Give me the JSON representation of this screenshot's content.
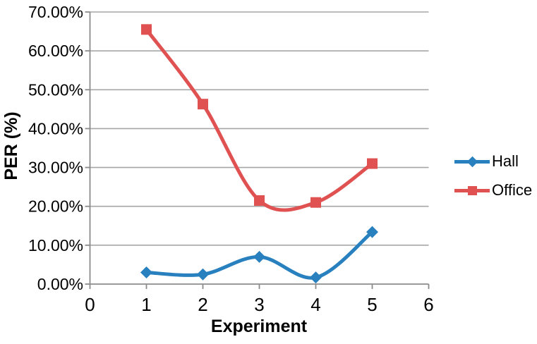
{
  "chart_data": {
    "type": "line",
    "title": "",
    "xlabel": "Experiment",
    "ylabel": "PER (%)",
    "x": [
      1,
      2,
      3,
      4,
      5
    ],
    "series": [
      {
        "name": "Hall",
        "color": "#2880BE",
        "marker": "diamond",
        "values": [
          3.0,
          2.5,
          7.0,
          1.7,
          13.4
        ]
      },
      {
        "name": "Office",
        "color": "#E05151",
        "marker": "square",
        "values": [
          65.5,
          46.3,
          21.5,
          21.0,
          31.0
        ]
      }
    ],
    "xlim": [
      0,
      6
    ],
    "ylim": [
      0,
      70
    ],
    "xtick_values": [
      0,
      1,
      2,
      3,
      4,
      5,
      6
    ],
    "xtick_labels": [
      "0",
      "1",
      "2",
      "3",
      "4",
      "5",
      "6"
    ],
    "ytick_values": [
      0,
      10,
      20,
      30,
      40,
      50,
      60,
      70
    ],
    "ytick_labels": [
      "0.00%",
      "10.00%",
      "20.00%",
      "30.00%",
      "40.00%",
      "50.00%",
      "60.00%",
      "70.00%"
    ],
    "grid": true,
    "smooth_lines": true,
    "legend_position": "right",
    "colors": {
      "grid": "#A6A6A6",
      "axis": "#8C8C8C",
      "text": "#000000"
    }
  }
}
